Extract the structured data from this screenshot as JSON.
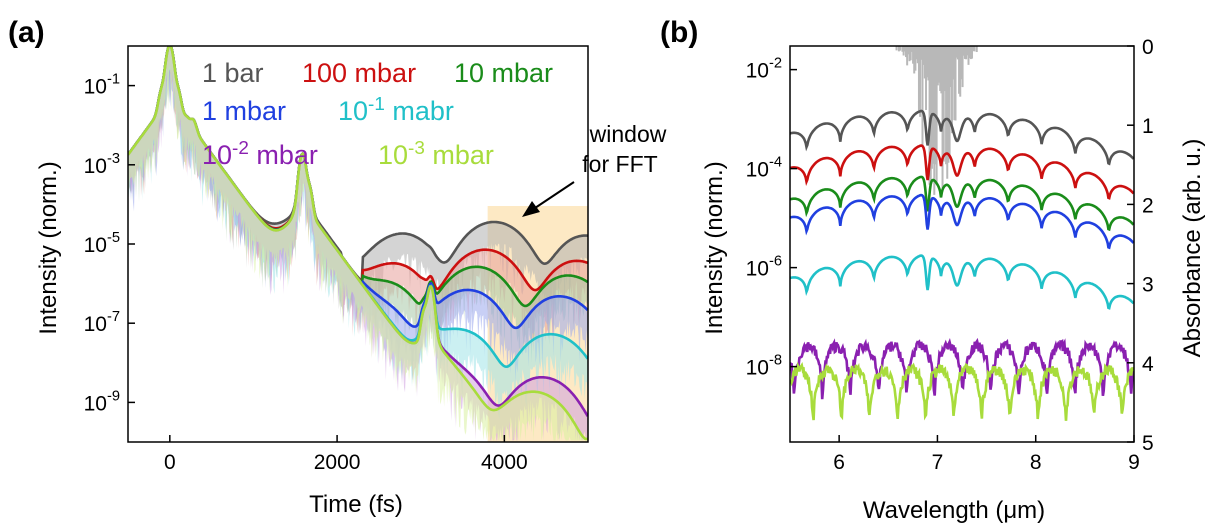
{
  "chart_data": [
    {
      "panel": "(a)",
      "type": "line",
      "log_y": true,
      "xlabel": "Time (fs)",
      "ylabel": "Intensity (norm.)",
      "xlim": [
        -500,
        5000
      ],
      "ylim": [
        1e-10,
        1
      ],
      "x_ticks": [
        0,
        2000,
        4000
      ],
      "x_tick_labels": [
        "0",
        "2000",
        "4000"
      ],
      "y_ticks": [
        0.1,
        0.001,
        1e-05,
        1e-07,
        1e-09
      ],
      "y_tick_labels": [
        {
          "base": "10",
          "exp": "-1"
        },
        {
          "base": "10",
          "exp": "-3"
        },
        {
          "base": "10",
          "exp": "-5"
        },
        {
          "base": "10",
          "exp": "-7"
        },
        {
          "base": "10",
          "exp": "-9"
        }
      ],
      "grid": false,
      "legend_position": "top",
      "shaded_region": {
        "x": [
          3800,
          5000
        ],
        "color": "#fde9c4"
      },
      "annotation": {
        "lines": [
          "window",
          "for FFT"
        ],
        "arrow": true
      },
      "series": [
        {
          "name": "1 bar",
          "legend_label": {
            "base": "1 bar",
            "exp": ""
          },
          "color": "#555555",
          "fill": "#b0b0b0",
          "background_level": 2e-05
        },
        {
          "name": "100 mbar",
          "legend_label": {
            "base": "100 mbar",
            "exp": ""
          },
          "color": "#cc1010",
          "fill": "#e8a09a",
          "background_level": 4e-06
        },
        {
          "name": "10 mbar",
          "legend_label": {
            "base": "10 mbar",
            "exp": ""
          },
          "color": "#1a8c1a",
          "fill": "#a8c8a8",
          "background_level": 1.5e-06
        },
        {
          "name": "1 mbar",
          "legend_label": {
            "base": "1 mbar",
            "exp": ""
          },
          "color": "#2040e0",
          "fill": "#9aa8ec",
          "background_level": 4e-07
        },
        {
          "name": "10-1 mabr",
          "legend_label": {
            "base": "10",
            "exp": "-1",
            "suffix": " mabr"
          },
          "color": "#20c0c8",
          "fill": "#a0e4e8",
          "background_level": 4e-08
        },
        {
          "name": "10-2 mbar",
          "legend_label": {
            "base": "10",
            "exp": "-2",
            "suffix": " mbar"
          },
          "color": "#8a20b0",
          "fill": "#d0a0e0",
          "background_level": 3e-09
        },
        {
          "name": "10-3 mbar",
          "legend_label": {
            "base": "10",
            "exp": "-3",
            "suffix": " mbar"
          },
          "color": "#a8dc3c",
          "fill": "#d8f0a0",
          "background_level": 1.2e-09
        }
      ],
      "peaks": [
        {
          "time": 0,
          "intensity": 1.0
        },
        {
          "time": 250,
          "intensity": 0.01
        },
        {
          "time": 1600,
          "intensity": 0.002
        },
        {
          "time": 3100,
          "intensity": 1e-06
        }
      ]
    },
    {
      "panel": "(b)",
      "type": "line",
      "log_y": true,
      "xlabel": "Wavelength (μm)",
      "ylabel": "Intensity (norm.)",
      "ylabel_right": "Absorbance (arb. u.)",
      "xlim": [
        5.5,
        9
      ],
      "ylim": [
        3e-10,
        0.03
      ],
      "ylim_right": [
        0,
        5
      ],
      "x_ticks": [
        6,
        7,
        8,
        9
      ],
      "x_tick_labels": [
        "6",
        "7",
        "8",
        "9"
      ],
      "y_ticks": [
        0.01,
        0.0001,
        1e-06,
        1e-08
      ],
      "y_tick_labels": [
        {
          "base": "10",
          "exp": "-2"
        },
        {
          "base": "10",
          "exp": "-4"
        },
        {
          "base": "10",
          "exp": "-6"
        },
        {
          "base": "10",
          "exp": "-8"
        }
      ],
      "y_right_ticks": [
        0,
        1,
        2,
        3,
        4,
        5
      ],
      "y_right_tick_labels": [
        "0",
        "1",
        "2",
        "3",
        "4",
        "5"
      ],
      "grid": false,
      "absorbance_color": "#b8b8b8",
      "series": [
        {
          "name": "1 bar",
          "color": "#555555",
          "peak_level": 0.0015
        },
        {
          "name": "100 mbar",
          "color": "#cc1010",
          "peak_level": 0.0003
        },
        {
          "name": "10 mbar",
          "color": "#1a8c1a",
          "peak_level": 7e-05
        },
        {
          "name": "1 mbar",
          "color": "#2040e0",
          "peak_level": 3e-05
        },
        {
          "name": "10-1 mabr",
          "color": "#20c0c8",
          "peak_level": 1.8e-06
        },
        {
          "name": "10-2 mbar",
          "color": "#8a20b0",
          "peak_level": 3e-08
        },
        {
          "name": "10-3 mbar",
          "color": "#a8dc3c",
          "peak_level": 1e-08
        }
      ]
    }
  ]
}
